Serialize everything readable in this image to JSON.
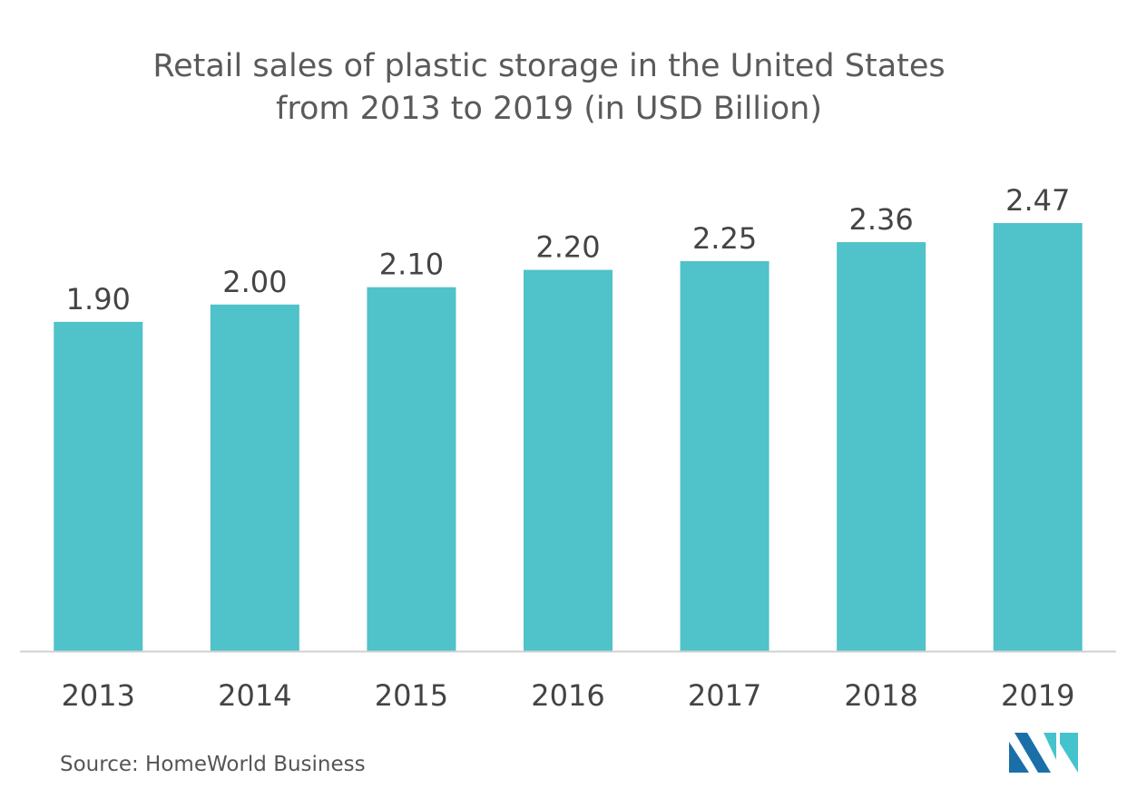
{
  "chart_data": {
    "type": "bar",
    "title_lines": [
      "Retail sales of plastic storage in the United States",
      "from 2013 to 2019 (in USD Billion)"
    ],
    "categories": [
      "2013",
      "2014",
      "2015",
      "2016",
      "2017",
      "2018",
      "2019"
    ],
    "values": [
      1.9,
      2.0,
      2.1,
      2.2,
      2.25,
      2.36,
      2.47
    ],
    "data_labels": [
      "1.90",
      "2.00",
      "2.10",
      "2.20",
      "2.25",
      "2.36",
      "2.47"
    ],
    "xlabel": "",
    "ylabel": "",
    "ylim": [
      0,
      2.47
    ],
    "grid": false,
    "legend": "none",
    "bar_color": "#50c2c9",
    "axis_color": "#d0d0d0",
    "text_color": "#444444"
  },
  "footer": {
    "source": "Source: HomeWorld Business"
  },
  "logo": {
    "icon": "mordor-intelligence-logo-icon",
    "colors": [
      "#1b6fa8",
      "#45c3cc"
    ]
  }
}
